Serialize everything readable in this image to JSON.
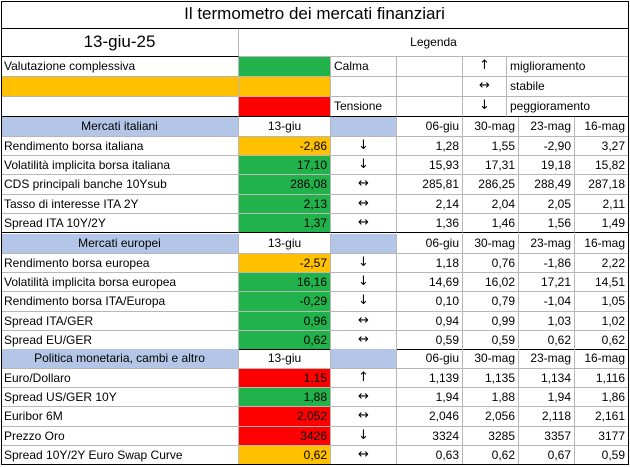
{
  "title": "Il termometro dei mercati finanziari",
  "date": "13-giu-25",
  "legend": {
    "header": "Legenda",
    "valutazione": "Valutazione complessiva",
    "calma": "Calma",
    "tensione": "Tensione",
    "up_arrow": "↑",
    "flat_arrow": "↔",
    "down_arrow": "↓",
    "miglioramento": "miglioramento",
    "stabile": "stabile",
    "peggioramento": "peggioramento"
  },
  "columns": [
    "13-giu",
    "06-giu",
    "30-mag",
    "23-mag",
    "16-mag"
  ],
  "sections": [
    {
      "title": "Mercati italiani",
      "rows": [
        {
          "label": "Rendimento borsa italiana",
          "value": "-2,86",
          "color": "yellow",
          "arrow": "↓",
          "h": [
            "1,28",
            "1,55",
            "-2,90",
            "3,27"
          ]
        },
        {
          "label": "Volatilità implicita borsa italiana",
          "value": "17,10",
          "color": "green",
          "arrow": "↓",
          "h": [
            "15,93",
            "17,31",
            "19,18",
            "15,82"
          ]
        },
        {
          "label": "CDS principali banche 10Ysub",
          "value": "286,08",
          "color": "green",
          "arrow": "↔",
          "h": [
            "285,81",
            "286,25",
            "288,49",
            "287,18"
          ]
        },
        {
          "label": "Tasso di interesse ITA 2Y",
          "value": "2,13",
          "color": "green",
          "arrow": "↔",
          "h": [
            "2,14",
            "2,04",
            "2,05",
            "2,11"
          ]
        },
        {
          "label": "Spread ITA 10Y/2Y",
          "value": "1,37",
          "color": "green",
          "arrow": "↔",
          "h": [
            "1,36",
            "1,46",
            "1,56",
            "1,49"
          ]
        }
      ]
    },
    {
      "title": "Mercati europei",
      "rows": [
        {
          "label": "Rendimento borsa europea",
          "value": "-2,57",
          "color": "yellow",
          "arrow": "↓",
          "h": [
            "1,18",
            "0,76",
            "-1,86",
            "2,22"
          ]
        },
        {
          "label": "Volatilità implicita borsa europea",
          "value": "16,16",
          "color": "green",
          "arrow": "↓",
          "h": [
            "14,69",
            "16,02",
            "17,21",
            "14,51"
          ]
        },
        {
          "label": "Rendimento borsa ITA/Europa",
          "value": "-0,29",
          "color": "green",
          "arrow": "↓",
          "h": [
            "0,10",
            "0,79",
            "-1,04",
            "1,05"
          ]
        },
        {
          "label": "Spread ITA/GER",
          "value": "0,96",
          "color": "green",
          "arrow": "↔",
          "h": [
            "0,94",
            "0,99",
            "1,03",
            "1,02"
          ]
        },
        {
          "label": "Spread EU/GER",
          "value": "0,62",
          "color": "green",
          "arrow": "↔",
          "h": [
            "0,59",
            "0,59",
            "0,62",
            "0,62"
          ]
        }
      ]
    },
    {
      "title": "Politica monetaria, cambi e altro",
      "rows": [
        {
          "label": "Euro/Dollaro",
          "value": "1,15",
          "color": "red",
          "arrow": "↑",
          "h": [
            "1,139",
            "1,135",
            "1,134",
            "1,116"
          ]
        },
        {
          "label": "Spread US/GER 10Y",
          "value": "1,88",
          "color": "green",
          "arrow": "↔",
          "h": [
            "1,94",
            "1,88",
            "1,94",
            "1,86"
          ]
        },
        {
          "label": "Euribor 6M",
          "value": "2,052",
          "color": "red",
          "arrow": "↔",
          "h": [
            "2,046",
            "2,056",
            "2,118",
            "2,161"
          ]
        },
        {
          "label": "Prezzo Oro",
          "value": "3426",
          "color": "red",
          "arrow": "↓",
          "h": [
            "3324",
            "3285",
            "3357",
            "3177"
          ]
        },
        {
          "label": "Spread 10Y/2Y Euro Swap Curve",
          "value": "0,62",
          "color": "yellow",
          "arrow": "↔",
          "h": [
            "0,63",
            "0,62",
            "0,67",
            "0,59"
          ]
        }
      ]
    }
  ],
  "colors": {
    "green": "#22b24c",
    "yellow": "#ffc000",
    "red": "#ff0000",
    "blue": "#b4c6e7"
  }
}
